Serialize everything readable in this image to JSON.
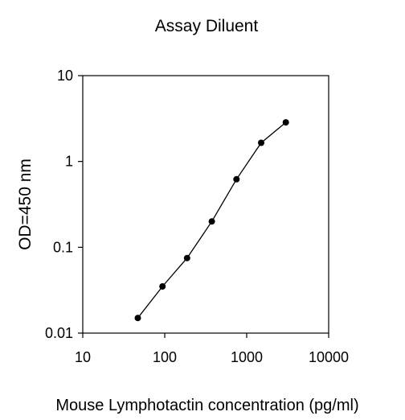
{
  "chart_data": {
    "type": "scatter",
    "title": "Assay Diluent",
    "xlabel": "Mouse Lymphotactin concentration (pg/ml)",
    "ylabel": "OD=450 nm",
    "x_scale": "log",
    "y_scale": "log",
    "xlim": [
      10,
      10000
    ],
    "ylim": [
      0.01,
      10
    ],
    "x_ticks": [
      10,
      100,
      1000,
      10000
    ],
    "y_ticks": [
      0.01,
      0.1,
      1,
      10
    ],
    "x_tick_labels": [
      "10",
      "100",
      "1000",
      "10000"
    ],
    "y_tick_labels": [
      "0.01",
      "0.1",
      "1",
      "10"
    ],
    "grid": false,
    "legend": "none",
    "connect_points": true,
    "series": [
      {
        "x": [
          46.9,
          93.8,
          187.5,
          375,
          750,
          1500,
          3000
        ],
        "y": [
          0.015,
          0.035,
          0.075,
          0.2,
          0.62,
          1.65,
          2.85
        ]
      }
    ]
  },
  "colors": {
    "line": "#000000",
    "marker": "#000000",
    "axis": "#000000",
    "background": "#ffffff"
  }
}
